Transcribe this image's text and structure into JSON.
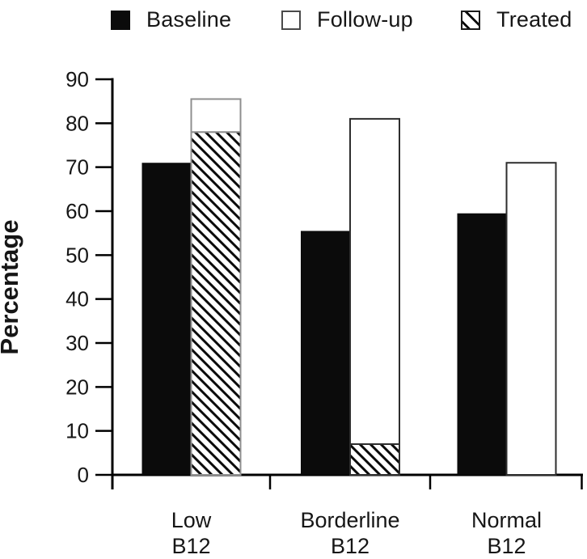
{
  "legend": {
    "items": [
      {
        "label": "Baseline",
        "swatch": "solid-black-square"
      },
      {
        "label": "Follow-up",
        "swatch": "white-square"
      },
      {
        "label": "Treated",
        "swatch": "diagonal-hatched-square"
      }
    ]
  },
  "chart_data": {
    "type": "bar",
    "title": "",
    "ylabel": "Percentage",
    "xlabel": "",
    "ylim": [
      0,
      90
    ],
    "yticks": [
      0,
      10,
      20,
      30,
      40,
      50,
      60,
      70,
      80,
      90
    ],
    "categories": [
      [
        "Low",
        "B12"
      ],
      [
        "Borderline",
        "B12"
      ],
      [
        "Normal",
        "B12"
      ]
    ],
    "series": [
      {
        "name": "Baseline",
        "style": "solid-black",
        "values": [
          71,
          55.5,
          59.5
        ]
      },
      {
        "name": "Follow-up",
        "style": "white-outlined",
        "values": [
          85.5,
          81,
          71
        ]
      },
      {
        "name": "Treated",
        "style": "black-diagonal-hatch",
        "values": [
          78,
          7,
          0
        ]
      }
    ],
    "structure": "Per category: left bar = solid black Baseline; right bar = stacked, hatched Treated portion at bottom with white segment extending up to the Follow-up total.",
    "legend_position": "top",
    "grid": false,
    "colors": {
      "bar_fill": "#0b0b0b",
      "outline_dark": "#2e2e2e",
      "outline_gray": "#8f8f8f",
      "background": "#ffffff",
      "text": "#161616"
    }
  }
}
